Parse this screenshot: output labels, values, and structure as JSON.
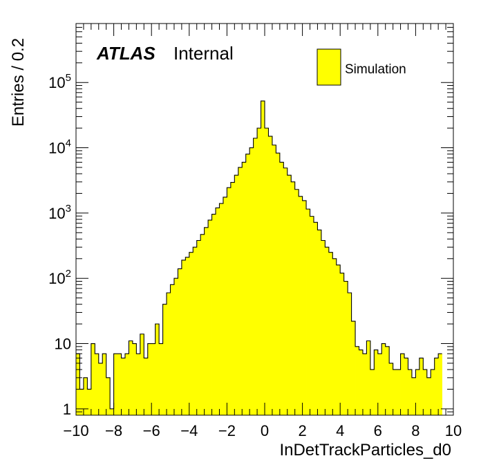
{
  "chart_data": {
    "type": "histogram",
    "title": "",
    "xlabel": "InDetTrackParticles_d0",
    "ylabel": "Entries / 0.2",
    "xlim": [
      -10,
      10
    ],
    "ylim": [
      0.8,
      800000
    ],
    "y_scale": "log",
    "bin_width": 0.2,
    "grid": false,
    "legend_position": "top-right",
    "x_ticks": [
      "−10",
      "−8",
      "−6",
      "−4",
      "−2",
      "0",
      "2",
      "4",
      "6",
      "8",
      "10"
    ],
    "y_ticks": [
      {
        "value": 1,
        "base": "1",
        "exp": ""
      },
      {
        "value": 10,
        "base": "10",
        "exp": ""
      },
      {
        "value": 100,
        "base": "10",
        "exp": "2"
      },
      {
        "value": 1000,
        "base": "10",
        "exp": "3"
      },
      {
        "value": 10000,
        "base": "10",
        "exp": "4"
      },
      {
        "value": 100000,
        "base": "10",
        "exp": "5"
      }
    ],
    "series": [
      {
        "name": "Simulation",
        "color": "#ffff00",
        "edge_color": "#000000",
        "bin_edges_start": -10,
        "values": [
          7,
          2,
          3,
          2,
          10,
          7,
          5,
          7,
          3,
          1,
          7,
          7,
          6,
          7,
          11,
          10,
          7,
          14,
          6,
          10,
          10,
          20,
          10,
          40,
          60,
          80,
          100,
          140,
          190,
          210,
          250,
          300,
          380,
          470,
          600,
          780,
          960,
          1200,
          1400,
          1750,
          2450,
          2950,
          3800,
          5000,
          6000,
          8000,
          10000,
          14000,
          20000,
          52000,
          20000,
          15000,
          11000,
          8300,
          6000,
          4900,
          3800,
          3000,
          2300,
          1800,
          1550,
          1150,
          890,
          720,
          550,
          380,
          300,
          250,
          200,
          160,
          120,
          90,
          60,
          22,
          9,
          8,
          7,
          11,
          4,
          8,
          7,
          10,
          9,
          5,
          4,
          4,
          7,
          6,
          4,
          3,
          4,
          6,
          4,
          3,
          4,
          6,
          7
        ]
      }
    ],
    "annotations": {
      "experiment": "ATLAS",
      "status": "Internal"
    }
  }
}
